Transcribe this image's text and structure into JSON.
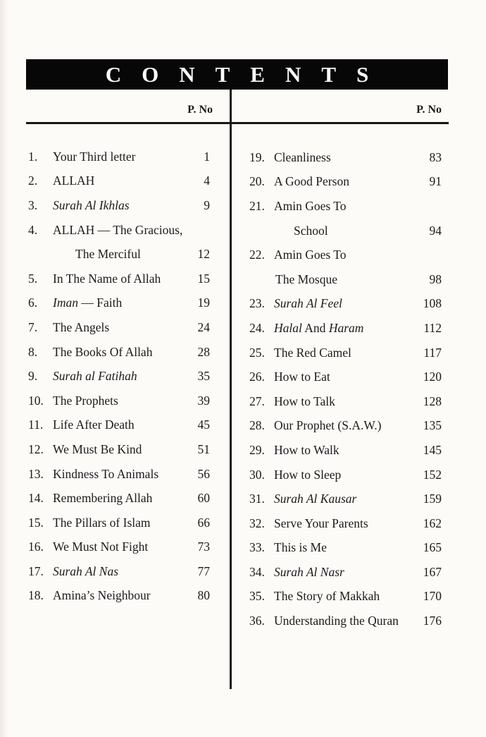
{
  "header": {
    "title": "CONTENTS",
    "page_no_label": "P. No"
  },
  "colors": {
    "banner_bg": "#070707",
    "banner_text": "#fbfbfb",
    "text": "#1b1b1b",
    "rule": "#161616",
    "page_bg": "#fcfbf8"
  },
  "columns": [
    {
      "items": [
        {
          "num": "1.",
          "page": "1",
          "lines": [
            {
              "seg": [
                {
                  "t": "Your Third letter"
                }
              ]
            }
          ]
        },
        {
          "num": "2.",
          "page": "4",
          "lines": [
            {
              "seg": [
                {
                  "t": "ALLAH"
                }
              ]
            }
          ]
        },
        {
          "num": "3.",
          "page": "9",
          "lines": [
            {
              "seg": [
                {
                  "t": "Surah Al Ikhlas",
                  "i": true
                }
              ]
            }
          ]
        },
        {
          "num": "4.",
          "page": "12",
          "lines": [
            {
              "seg": [
                {
                  "t": "ALLAH — The Gracious,"
                }
              ]
            },
            {
              "ind": 32,
              "seg": [
                {
                  "t": "The Merciful"
                }
              ]
            }
          ]
        },
        {
          "num": "5.",
          "page": "15",
          "lines": [
            {
              "seg": [
                {
                  "t": "In The Name of Allah"
                }
              ]
            }
          ]
        },
        {
          "num": "6.",
          "page": "19",
          "lines": [
            {
              "seg": [
                {
                  "t": "Iman",
                  "i": true
                },
                {
                  "t": " — Faith"
                }
              ]
            }
          ]
        },
        {
          "num": "7.",
          "page": "24",
          "lines": [
            {
              "seg": [
                {
                  "t": "The Angels"
                }
              ]
            }
          ]
        },
        {
          "num": "8.",
          "page": "28",
          "lines": [
            {
              "seg": [
                {
                  "t": "The Books Of Allah"
                }
              ]
            }
          ]
        },
        {
          "num": "9.",
          "page": "35",
          "lines": [
            {
              "seg": [
                {
                  "t": "Surah al Fatihah",
                  "i": true
                }
              ]
            }
          ]
        },
        {
          "num": "10.",
          "page": "39",
          "lines": [
            {
              "seg": [
                {
                  "t": "The Prophets"
                }
              ]
            }
          ]
        },
        {
          "num": "11.",
          "page": "45",
          "lines": [
            {
              "seg": [
                {
                  "t": "Life After Death"
                }
              ]
            }
          ]
        },
        {
          "num": "12.",
          "page": "51",
          "lines": [
            {
              "seg": [
                {
                  "t": "We Must Be Kind"
                }
              ]
            }
          ]
        },
        {
          "num": "13.",
          "page": "56",
          "lines": [
            {
              "seg": [
                {
                  "t": "Kindness To Animals"
                }
              ]
            }
          ]
        },
        {
          "num": "14.",
          "page": "60",
          "lines": [
            {
              "seg": [
                {
                  "t": "Remembering Allah"
                }
              ]
            }
          ]
        },
        {
          "num": "15.",
          "page": "66",
          "lines": [
            {
              "seg": [
                {
                  "t": "The Pillars of Islam"
                }
              ]
            }
          ]
        },
        {
          "num": "16.",
          "page": "73",
          "lines": [
            {
              "seg": [
                {
                  "t": "We Must Not Fight"
                }
              ]
            }
          ]
        },
        {
          "num": "17.",
          "page": "77",
          "lines": [
            {
              "seg": [
                {
                  "t": "Surah Al Nas",
                  "i": true
                }
              ]
            }
          ]
        },
        {
          "num": "18.",
          "page": "80",
          "lines": [
            {
              "seg": [
                {
                  "t": "Amina’s Neighbour"
                }
              ]
            }
          ]
        }
      ]
    },
    {
      "items": [
        {
          "num": "19.",
          "page": "83",
          "lines": [
            {
              "seg": [
                {
                  "t": "Cleanliness"
                }
              ]
            }
          ]
        },
        {
          "num": "20.",
          "page": "91",
          "lines": [
            {
              "seg": [
                {
                  "t": "A Good Person"
                }
              ]
            }
          ]
        },
        {
          "num": "21.",
          "page": "94",
          "lines": [
            {
              "seg": [
                {
                  "t": "Amin Goes To"
                }
              ]
            },
            {
              "ind": 28,
              "seg": [
                {
                  "t": "School"
                }
              ]
            }
          ]
        },
        {
          "num": "22.",
          "page": "98",
          "lines": [
            {
              "seg": [
                {
                  "t": "Amin Goes To"
                }
              ]
            },
            {
              "ind": 2,
              "seg": [
                {
                  "t": "The Mosque"
                }
              ]
            }
          ]
        },
        {
          "num": "23.",
          "page": "108",
          "lines": [
            {
              "seg": [
                {
                  "t": "Surah Al Feel",
                  "i": true
                }
              ]
            }
          ]
        },
        {
          "num": "24.",
          "page": "112",
          "lines": [
            {
              "seg": [
                {
                  "t": "Halal",
                  "i": true
                },
                {
                  "t": " And "
                },
                {
                  "t": "Haram",
                  "i": true
                }
              ]
            }
          ]
        },
        {
          "num": "25.",
          "page": "117",
          "lines": [
            {
              "seg": [
                {
                  "t": "The Red Camel"
                }
              ]
            }
          ]
        },
        {
          "num": "26.",
          "page": "120",
          "lines": [
            {
              "seg": [
                {
                  "t": "How to Eat"
                }
              ]
            }
          ]
        },
        {
          "num": "27.",
          "page": "128",
          "lines": [
            {
              "seg": [
                {
                  "t": "How to Talk"
                }
              ]
            }
          ]
        },
        {
          "num": "28.",
          "page": "135",
          "lines": [
            {
              "seg": [
                {
                  "t": "Our Prophet (S.A.W.)"
                }
              ]
            }
          ]
        },
        {
          "num": "29.",
          "page": "145",
          "lines": [
            {
              "seg": [
                {
                  "t": "How to Walk"
                }
              ]
            }
          ]
        },
        {
          "num": "30.",
          "page": "152",
          "lines": [
            {
              "seg": [
                {
                  "t": "How to Sleep"
                }
              ]
            }
          ]
        },
        {
          "num": "31.",
          "page": "159",
          "lines": [
            {
              "seg": [
                {
                  "t": "Surah Al Kausar",
                  "i": true
                }
              ]
            }
          ]
        },
        {
          "num": "32.",
          "page": "162",
          "lines": [
            {
              "seg": [
                {
                  "t": "Serve Your Parents"
                }
              ]
            }
          ]
        },
        {
          "num": "33.",
          "page": "165",
          "lines": [
            {
              "seg": [
                {
                  "t": "This is Me"
                }
              ]
            }
          ]
        },
        {
          "num": "34.",
          "page": "167",
          "lines": [
            {
              "seg": [
                {
                  "t": "Surah Al Nasr",
                  "i": true
                }
              ]
            }
          ]
        },
        {
          "num": "35.",
          "page": "170",
          "lines": [
            {
              "seg": [
                {
                  "t": "The Story of Makkah"
                }
              ]
            }
          ]
        },
        {
          "num": "36.",
          "page": "176",
          "lines": [
            {
              "seg": [
                {
                  "t": "Understanding the Quran"
                }
              ]
            }
          ]
        }
      ]
    }
  ]
}
